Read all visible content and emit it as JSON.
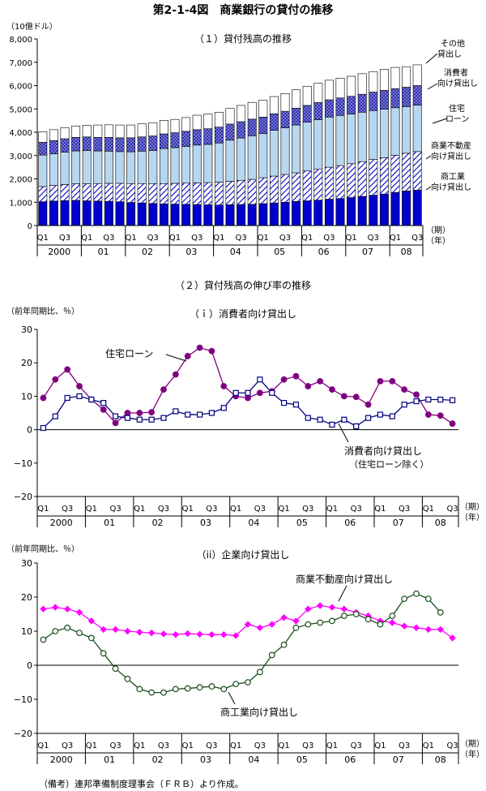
{
  "figure_title": "第2-1-4図　商業銀行の貸付の推移",
  "source_note": "（備考）連邦準備制度理事会（ＦＲＢ）より作成。",
  "chart_data": [
    {
      "type": "bar",
      "stacked": true,
      "title": "（１）貸付残高の推移",
      "unit_label": "（10億ドル）",
      "x_unit_label": "（期）",
      "year_unit_label": "（年）",
      "ylim": [
        0,
        8000
      ],
      "yticks": [
        "0",
        "1,000",
        "2,000",
        "3,000",
        "4,000",
        "5,000",
        "6,000",
        "7,000",
        "8,000"
      ],
      "quarter_labels": [
        "Q1",
        "Q3"
      ],
      "years": [
        "2000",
        "01",
        "02",
        "03",
        "04",
        "05",
        "06",
        "07",
        "08"
      ],
      "categories": [
        "2000Q1",
        "2000Q2",
        "2000Q3",
        "2000Q4",
        "01Q1",
        "01Q2",
        "01Q3",
        "01Q4",
        "02Q1",
        "02Q2",
        "02Q3",
        "02Q4",
        "03Q1",
        "03Q2",
        "03Q3",
        "03Q4",
        "04Q1",
        "04Q2",
        "04Q3",
        "04Q4",
        "05Q1",
        "05Q2",
        "05Q3",
        "05Q4",
        "06Q1",
        "06Q2",
        "06Q3",
        "06Q4",
        "07Q1",
        "07Q2",
        "07Q3",
        "07Q4",
        "08Q1",
        "08Q2",
        "08Q3"
      ],
      "series": [
        {
          "name": "商工業向け貸出し",
          "color": "#0000CC",
          "values": [
            1020,
            1050,
            1070,
            1080,
            1060,
            1050,
            1040,
            1020,
            990,
            970,
            950,
            930,
            920,
            910,
            900,
            890,
            880,
            890,
            900,
            910,
            940,
            970,
            1000,
            1030,
            1060,
            1090,
            1130,
            1160,
            1200,
            1250,
            1300,
            1350,
            1420,
            1480,
            1520
          ]
        },
        {
          "name": "商業不動産向け貸出し",
          "color": "#FFFFFF",
          "values": [
            650,
            670,
            690,
            710,
            730,
            750,
            770,
            790,
            810,
            830,
            850,
            870,
            890,
            910,
            930,
            950,
            980,
            1010,
            1040,
            1070,
            1110,
            1150,
            1190,
            1230,
            1280,
            1320,
            1370,
            1410,
            1450,
            1490,
            1530,
            1560,
            1590,
            1620,
            1650
          ]
        },
        {
          "name": "住宅ローン",
          "color": "#B7D6F0",
          "values": [
            1350,
            1360,
            1390,
            1410,
            1430,
            1400,
            1380,
            1360,
            1360,
            1390,
            1420,
            1500,
            1530,
            1570,
            1620,
            1640,
            1680,
            1760,
            1810,
            1870,
            1890,
            1960,
            2000,
            2050,
            2090,
            2130,
            2150,
            2150,
            2130,
            2120,
            2100,
            2080,
            2040,
            2000,
            1990
          ]
        },
        {
          "name": "消費者向け貸出し",
          "color": "#8A8AE6",
          "values": [
            550,
            560,
            570,
            580,
            580,
            580,
            590,
            590,
            600,
            610,
            620,
            630,
            640,
            650,
            660,
            670,
            680,
            690,
            700,
            710,
            710,
            710,
            710,
            720,
            720,
            730,
            740,
            750,
            760,
            770,
            790,
            810,
            820,
            830,
            840
          ]
        },
        {
          "name": "その他貸出し",
          "color": "#FFFFFF",
          "values": [
            450,
            470,
            480,
            490,
            500,
            530,
            540,
            550,
            550,
            560,
            570,
            580,
            570,
            590,
            620,
            630,
            640,
            670,
            700,
            720,
            720,
            740,
            760,
            790,
            820,
            830,
            840,
            850,
            860,
            880,
            880,
            900,
            910,
            880,
            890
          ]
        }
      ]
    },
    {
      "type": "line",
      "section_title": "（２）貸付残高の伸び率の推移",
      "title": "（ｉ）消費者向け貸出し",
      "unit_label": "（前年同期比、％）",
      "x_unit_label": "（期）",
      "year_unit_label": "（年）",
      "ylim": [
        -20,
        30
      ],
      "yticks": [
        "−20",
        "−10",
        "0",
        "10",
        "20",
        "30"
      ],
      "quarter_labels": [
        "Q1",
        "Q3"
      ],
      "years": [
        "2000",
        "01",
        "02",
        "03",
        "04",
        "05",
        "06",
        "07",
        "08"
      ],
      "series": [
        {
          "name": "住宅ローン",
          "color": "#800080",
          "marker": "circle",
          "values": [
            9.5,
            15.0,
            18.0,
            13.0,
            9.0,
            6.0,
            2.0,
            5.0,
            5.0,
            5.2,
            12.0,
            16.5,
            22.0,
            24.5,
            23.5,
            13.0,
            10.0,
            9.5,
            11.0,
            11.5,
            15.0,
            16.0,
            13.0,
            14.5,
            12.0,
            10.0,
            9.8,
            7.5,
            14.5,
            14.5,
            12.0,
            10.5,
            4.5,
            4.2,
            1.8
          ]
        },
        {
          "name": "消費者向け貸出し",
          "name_line2": "（住宅ローン除く）",
          "color": "#000080",
          "marker": "square",
          "values": [
            0.5,
            4.0,
            9.5,
            10.0,
            9.0,
            8.0,
            4.0,
            3.5,
            3.0,
            3.0,
            3.5,
            5.5,
            4.5,
            4.5,
            5.0,
            6.5,
            11.0,
            11.0,
            15.0,
            11.0,
            8.0,
            7.5,
            3.5,
            3.0,
            1.5,
            3.0,
            1.0,
            3.5,
            4.5,
            4.0,
            7.5,
            8.5,
            9.0,
            9.0,
            8.8
          ]
        }
      ]
    },
    {
      "type": "line",
      "title": "（ii）企業向け貸出し",
      "unit_label": "（前年同期比、％）",
      "x_unit_label": "（期）",
      "year_unit_label": "（年）",
      "ylim": [
        -20,
        30
      ],
      "yticks": [
        "−20",
        "−10",
        "0",
        "10",
        "20",
        "30"
      ],
      "quarter_labels": [
        "Q1",
        "Q3"
      ],
      "years": [
        "2000",
        "01",
        "02",
        "03",
        "04",
        "05",
        "06",
        "07",
        "08"
      ],
      "series": [
        {
          "name": "商業不動産向け貸出し",
          "color": "#FF00FF",
          "marker": "diamond",
          "values": [
            16.5,
            17.0,
            16.5,
            15.5,
            13.0,
            10.5,
            10.5,
            10.0,
            9.7,
            9.5,
            9.2,
            9.0,
            9.3,
            9.1,
            9.0,
            9.0,
            8.7,
            12.0,
            11.0,
            12.0,
            14.0,
            13.0,
            16.5,
            17.5,
            17.0,
            16.5,
            15.5,
            14.5,
            13.0,
            12.5,
            11.5,
            11.0,
            10.5,
            10.5,
            8.0
          ]
        },
        {
          "name": "商工業向け貸出し",
          "color": "#1A4D1A",
          "marker": "circle",
          "values": [
            7.5,
            10.0,
            11.0,
            9.5,
            8.0,
            3.5,
            -1.0,
            -4.0,
            -7.0,
            -8.0,
            -8.0,
            -7.0,
            -6.8,
            -6.5,
            -6.2,
            -7.0,
            -5.5,
            -5.0,
            -2.0,
            3.0,
            6.0,
            11.0,
            12.0,
            12.5,
            13.0,
            14.5,
            15.0,
            13.5,
            12.0,
            14.5,
            19.5,
            21.0,
            19.5,
            15.5,
            null
          ]
        }
      ]
    }
  ]
}
